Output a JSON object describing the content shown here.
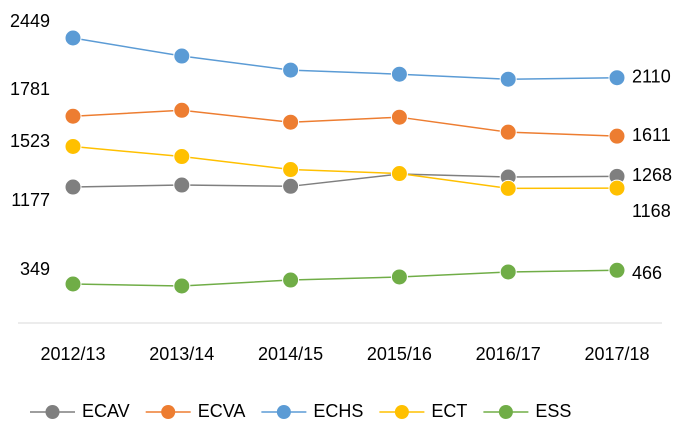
{
  "chart_data": {
    "type": "line",
    "categories": [
      "2012/13",
      "2013/14",
      "2014/15",
      "2015/16",
      "2016/17",
      "2017/18"
    ],
    "series": [
      {
        "name": "ECAV",
        "color": "#7f7f7f",
        "values": [
          1177,
          1194,
          1183,
          1288,
          1262,
          1268
        ]
      },
      {
        "name": "ECVA",
        "color": "#ed7d31",
        "values": [
          1781,
          1832,
          1730,
          1773,
          1645,
          1611
        ]
      },
      {
        "name": "ECHS",
        "color": "#5b9bd5",
        "values": [
          2449,
          2295,
          2175,
          2140,
          2097,
          2110
        ]
      },
      {
        "name": "ECT",
        "color": "#ffc000",
        "values": [
          1523,
          1437,
          1326,
          1292,
          1165,
          1168
        ]
      },
      {
        "name": "ESS",
        "color": "#70ad47",
        "values": [
          349,
          332,
          383,
          409,
          452,
          466
        ]
      }
    ],
    "legend": "bottom"
  }
}
